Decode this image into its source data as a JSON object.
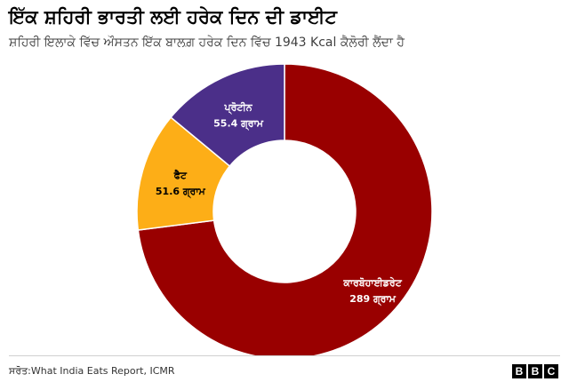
{
  "header": {
    "title": "ਇੱਕ ਸ਼ਹਿਰੀ ਭਾਰਤੀ ਲਈ ਹਰੇਕ ਦਿਨ ਦੀ ਡਾਈਟ",
    "subtitle": "ਸ਼ਹਿਰੀ ਇਲਾਕੇ ਵਿੱਚ ਔਸਤਨ ਇੱਕ ਬਾਲਗ਼ ਹਰੇਕ ਦਿਨ ਵਿੱਚ 1943 Kcal ਕੈਲੋਰੀ ਲੈਂਦਾ ਹੈ"
  },
  "chart_data": {
    "type": "pie",
    "donut": true,
    "unit": "ਗ੍ਰਾਮ",
    "slices": [
      {
        "label": "ਕਾਰਬੋਹਾਈਡਰੇਟ",
        "value": 289,
        "value_label": "289 ਗ੍ਰਾਮ",
        "color": "#990000"
      },
      {
        "label": "ਫੈਟ",
        "value": 51.6,
        "value_label": "51.6 ਗ੍ਰਾਮ",
        "color": "#fdae17"
      },
      {
        "label": "ਪ੍ਰੋਟੀਨ",
        "value": 55.4,
        "value_label": "55.4 ਗ੍ਰਾਮ",
        "color": "#4b2f89"
      }
    ]
  },
  "footer": {
    "source": "ਸਰੋਤ:What India Eats Report, ICMR",
    "logo_letters": [
      "B",
      "B",
      "C"
    ]
  }
}
